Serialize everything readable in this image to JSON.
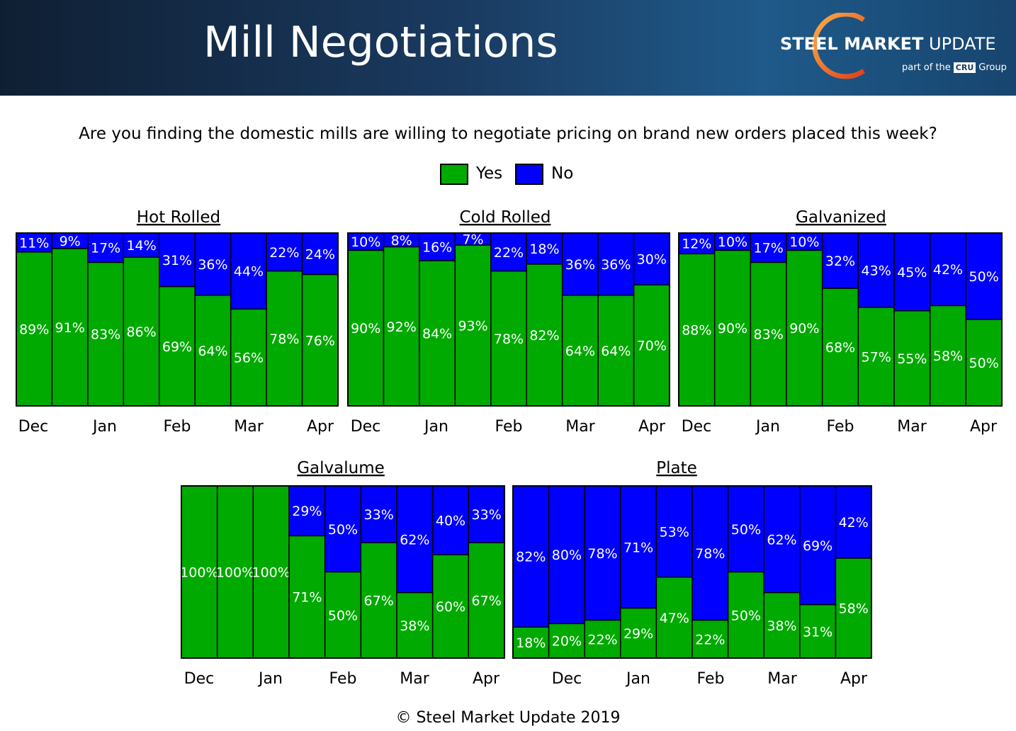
{
  "header": {
    "title": "Mill Negotiations",
    "logo_main_bold": "STEEL MARKET",
    "logo_main_light": "UPDATE",
    "logo_sub_before": "part of the",
    "logo_sub_box": "CRU",
    "logo_sub_after": "Group"
  },
  "question": "Are you finding the domestic mills are willing to negotiate pricing on brand new orders placed this week?",
  "legend": [
    {
      "label": "Yes",
      "color": "#00aa00"
    },
    {
      "label": "No",
      "color": "#0000ff"
    }
  ],
  "footer": "© Steel Market Update 2019",
  "chart_data": [
    {
      "type": "bar",
      "stacked": true,
      "title": "Hot Rolled",
      "x_labels": [
        "Dec",
        "Jan",
        "Feb",
        "Mar",
        "Apr"
      ],
      "series": [
        {
          "name": "Yes",
          "values": [
            89,
            91,
            83,
            86,
            69,
            64,
            56,
            78,
            76
          ],
          "labels": [
            "89%",
            "91%",
            "83%",
            "86%",
            "69%",
            "64%",
            "56%",
            "78%",
            "76%"
          ]
        },
        {
          "name": "No",
          "values": [
            11,
            9,
            17,
            14,
            31,
            36,
            44,
            22,
            24
          ],
          "labels": [
            "11%",
            "9%",
            "17%",
            "14%",
            "31%",
            "36%",
            "44%",
            "22%",
            "24%"
          ]
        }
      ]
    },
    {
      "type": "bar",
      "stacked": true,
      "title": "Cold Rolled",
      "x_labels": [
        "Dec",
        "Jan",
        "Feb",
        "Mar",
        "Apr"
      ],
      "series": [
        {
          "name": "Yes",
          "values": [
            90,
            92,
            84,
            93,
            78,
            82,
            64,
            64,
            70
          ],
          "labels": [
            "90%",
            "92%",
            "84%",
            "93%",
            "78%",
            "82%",
            "64%",
            "64%",
            "70%"
          ]
        },
        {
          "name": "No",
          "values": [
            10,
            8,
            16,
            7,
            22,
            18,
            36,
            36,
            30
          ],
          "labels": [
            "10%",
            "8%",
            "16%",
            "7%",
            "22%",
            "18%",
            "36%",
            "36%",
            "30%"
          ]
        }
      ]
    },
    {
      "type": "bar",
      "stacked": true,
      "title": "Galvanized",
      "x_labels": [
        "Dec",
        "Jan",
        "Feb",
        "Mar",
        "Apr"
      ],
      "series": [
        {
          "name": "Yes",
          "values": [
            88,
            90,
            83,
            90,
            68,
            57,
            55,
            58,
            50
          ],
          "labels": [
            "88%",
            "90%",
            "83%",
            "90%",
            "68%",
            "57%",
            "55%",
            "58%",
            "50%"
          ]
        },
        {
          "name": "No",
          "values": [
            12,
            10,
            17,
            10,
            32,
            43,
            45,
            42,
            50
          ],
          "labels": [
            "12%",
            "10%",
            "17%",
            "10%",
            "32%",
            "43%",
            "45%",
            "42%",
            "50%"
          ]
        }
      ]
    },
    {
      "type": "bar",
      "stacked": true,
      "title": "Galvalume",
      "x_labels": [
        "Dec",
        "Jan",
        "Feb",
        "Mar",
        "Apr"
      ],
      "series": [
        {
          "name": "Yes",
          "values": [
            100,
            100,
            100,
            71,
            50,
            67,
            38,
            60,
            67
          ],
          "labels": [
            "100%",
            "100%",
            "100%",
            "71%",
            "50%",
            "67%",
            "38%",
            "60%",
            "67%"
          ]
        },
        {
          "name": "No",
          "values": [
            0,
            0,
            0,
            29,
            50,
            33,
            62,
            40,
            33
          ],
          "labels": [
            "",
            "",
            "",
            "29%",
            "50%",
            "33%",
            "62%",
            "40%",
            "33%"
          ]
        }
      ]
    },
    {
      "type": "bar",
      "stacked": true,
      "title": "Plate",
      "x_labels": [
        "Dec",
        "Jan",
        "Feb",
        "Mar",
        "Apr"
      ],
      "series": [
        {
          "name": "Yes",
          "values": [
            18,
            20,
            22,
            29,
            47,
            22,
            50,
            38,
            31,
            58
          ],
          "labels": [
            "18%",
            "20%",
            "22%",
            "29%",
            "47%",
            "22%",
            "50%",
            "38%",
            "31%",
            "58%"
          ]
        },
        {
          "name": "No",
          "values": [
            82,
            80,
            78,
            71,
            53,
            78,
            50,
            62,
            69,
            42
          ],
          "labels": [
            "82%",
            "80%",
            "78%",
            "71%",
            "53%",
            "78%",
            "50%",
            "62%",
            "69%",
            "42%"
          ]
        }
      ]
    }
  ]
}
